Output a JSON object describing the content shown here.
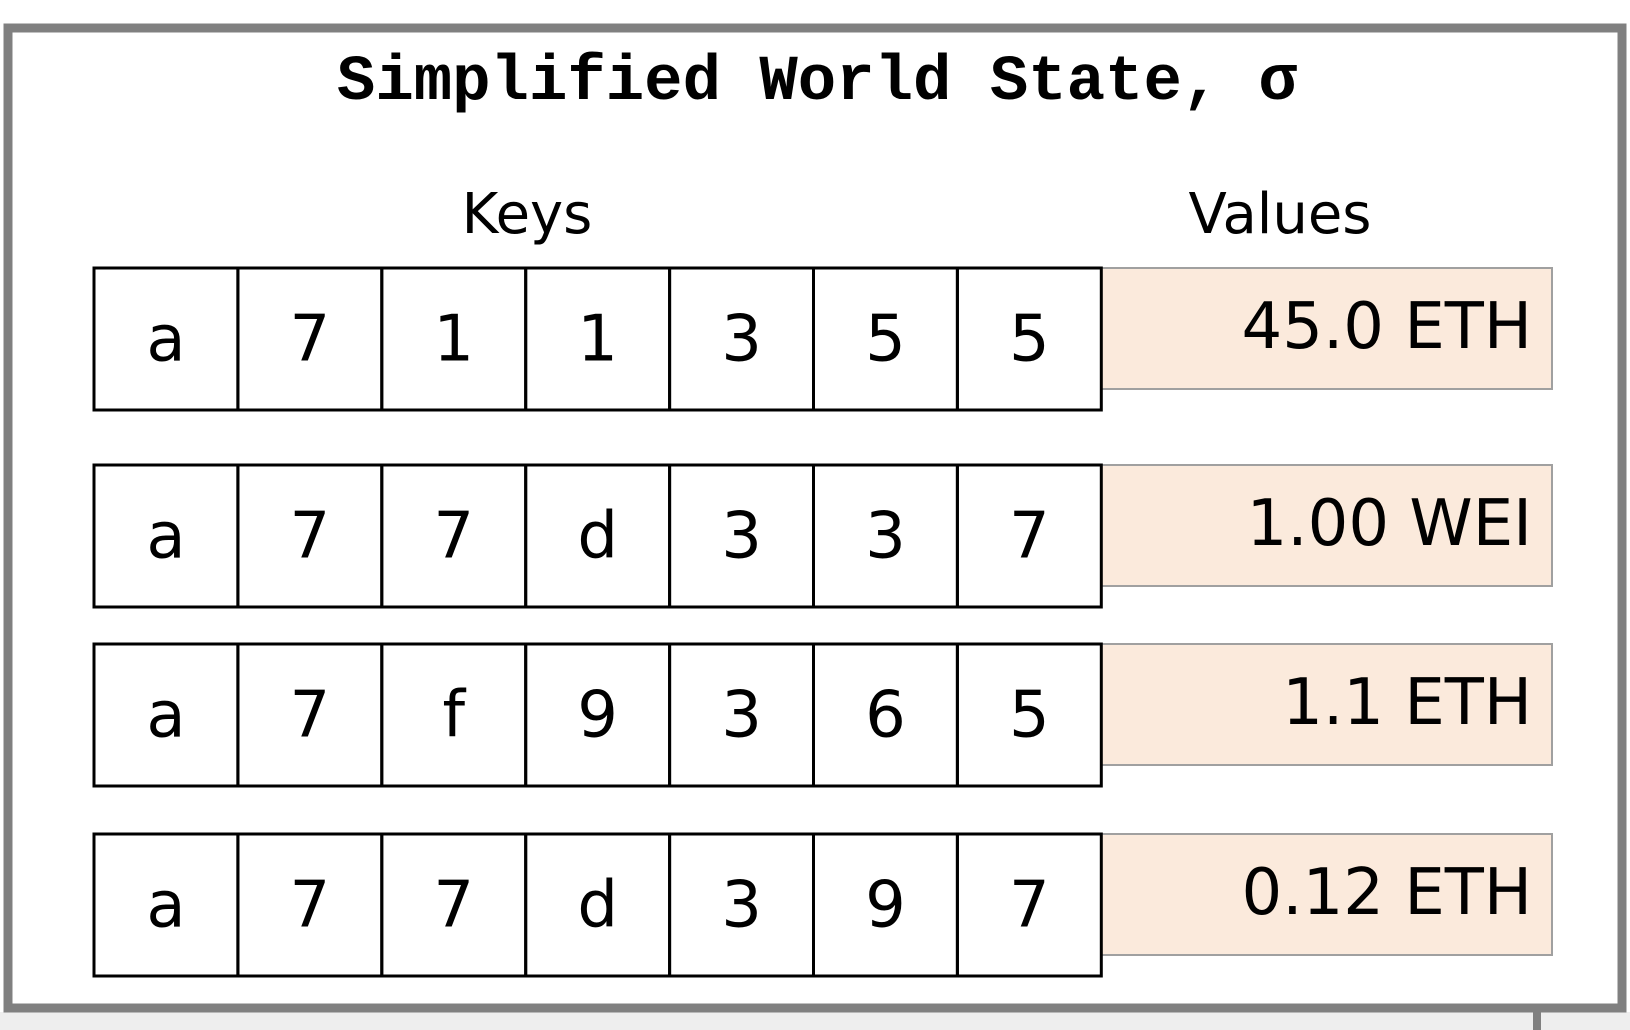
{
  "title": "Simplified World State, σ",
  "headers": {
    "keys": "Keys",
    "values": "Values"
  },
  "rows": [
    {
      "key": [
        "a",
        "7",
        "1",
        "1",
        "3",
        "5",
        "5"
      ],
      "value": "45.0 ETH"
    },
    {
      "key": [
        "a",
        "7",
        "7",
        "d",
        "3",
        "3",
        "7"
      ],
      "value": "1.00 WEI"
    },
    {
      "key": [
        "a",
        "7",
        "f",
        "9",
        "3",
        "6",
        "5"
      ],
      "value": "1.1 ETH"
    },
    {
      "key": [
        "a",
        "7",
        "7",
        "d",
        "3",
        "9",
        "7"
      ],
      "value": "0.12 ETH"
    }
  ]
}
